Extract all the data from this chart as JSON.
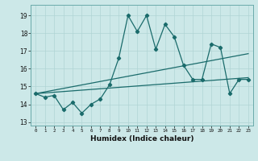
{
  "title": "",
  "xlabel": "Humidex (Indice chaleur)",
  "ylabel": "",
  "bg_color": "#cce8e8",
  "grid_color": "#b0d4d4",
  "line_color": "#1a6b6b",
  "x_ticks": [
    0,
    1,
    2,
    3,
    4,
    5,
    6,
    7,
    8,
    9,
    10,
    11,
    12,
    13,
    14,
    15,
    16,
    17,
    18,
    19,
    20,
    21,
    22,
    23
  ],
  "ylim": [
    12.8,
    19.6
  ],
  "xlim": [
    -0.5,
    23.5
  ],
  "yticks": [
    13,
    14,
    15,
    16,
    17,
    18,
    19
  ],
  "main_x": [
    0,
    1,
    2,
    3,
    4,
    5,
    6,
    7,
    8,
    9,
    10,
    11,
    12,
    13,
    14,
    15,
    16,
    17,
    18,
    19,
    20,
    21,
    22,
    23
  ],
  "main_y": [
    14.6,
    14.4,
    14.5,
    13.7,
    14.1,
    13.5,
    14.0,
    14.3,
    15.1,
    16.6,
    19.0,
    18.1,
    19.0,
    17.1,
    18.5,
    17.8,
    16.2,
    15.4,
    15.4,
    17.4,
    17.2,
    14.6,
    15.4,
    15.4
  ],
  "trend1_x": [
    0,
    23
  ],
  "trend1_y": [
    14.6,
    15.5
  ],
  "trend2_x": [
    0,
    23
  ],
  "trend2_y": [
    14.6,
    16.85
  ]
}
